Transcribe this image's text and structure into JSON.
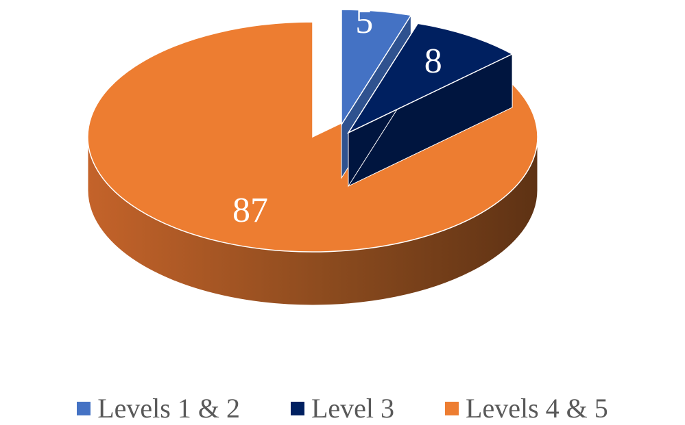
{
  "chart_data": {
    "type": "pie",
    "title": "",
    "style": "3d exploded",
    "legend_position": "bottom",
    "slices": [
      {
        "label": "Levels 1 & 2",
        "value": 5,
        "color": "#4472C4",
        "side_color": "#2F528F"
      },
      {
        "label": "Level 3",
        "value": 8,
        "color": "#002060",
        "side_color": "#00153F"
      },
      {
        "label": "Levels 4 & 5",
        "value": 87,
        "color": "#ED7D31",
        "side_color": "#7A3E16"
      }
    ],
    "data_label_color": "#FFFFFF"
  }
}
